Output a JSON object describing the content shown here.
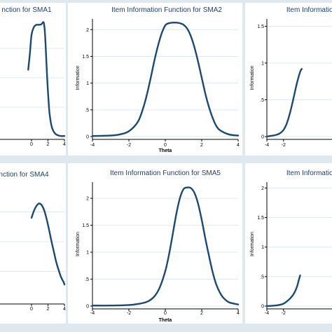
{
  "colors": {
    "line": "#1a4a72",
    "axis": "#000000",
    "grid": "#dfe8ee",
    "title": "#1f3f6e",
    "panel_bg": "#ffffff",
    "outer_bg": "#dfe8ee"
  },
  "chart_data": [
    {
      "type": "line",
      "title": "nction for SMA1",
      "xlabel": "",
      "ylabel": "",
      "xlim": [
        -4,
        4
      ],
      "ylim": [
        0,
        2.2
      ],
      "x_ticks": [
        0,
        2,
        4
      ],
      "x_tick_labels": [
        "0",
        "2",
        "4"
      ],
      "y_ticks": [],
      "y_tick_labels": [],
      "grid": true,
      "series": [
        {
          "x": [
            -0.4,
            -0.2,
            0,
            0.3,
            0.6,
            0.9,
            1.2,
            1.4,
            1.5,
            1.6,
            1.7,
            1.8,
            1.9,
            2,
            2.1,
            2.2,
            2.4,
            2.6,
            2.8,
            3,
            3.3,
            3.6,
            3.9,
            4
          ],
          "y": [
            1.25,
            1.55,
            1.9,
            2.05,
            2.09,
            2.09,
            2.1,
            2.14,
            2.12,
            2,
            1.75,
            1.42,
            1.1,
            0.83,
            0.6,
            0.42,
            0.22,
            0.12,
            0.07,
            0.04,
            0.02,
            0.01,
            0.01,
            0.01
          ]
        }
      ]
    },
    {
      "type": "line",
      "title": "Item Information Function for SMA2",
      "xlabel": "Theta",
      "ylabel": "Information",
      "xlim": [
        -4,
        4
      ],
      "ylim": [
        0,
        2.2
      ],
      "x_ticks": [
        -4,
        -2,
        0,
        2,
        4
      ],
      "x_tick_labels": [
        "-4",
        "-2",
        "0",
        "2",
        "4"
      ],
      "y_ticks": [
        0,
        0.5,
        1,
        1.5,
        2
      ],
      "y_tick_labels": [
        "0",
        ".5",
        "1",
        "1.5",
        "2"
      ],
      "grid": true,
      "series": [
        {
          "x": [
            -4,
            -3,
            -2.5,
            -2,
            -1.5,
            -1.2,
            -1,
            -0.8,
            -0.6,
            -0.4,
            -0.2,
            0,
            0.2,
            0.4,
            0.6,
            0.8,
            1,
            1.2,
            1.4,
            1.6,
            1.8,
            2,
            2.2,
            2.4,
            2.6,
            2.8,
            3,
            3.5,
            4
          ],
          "y": [
            0.01,
            0.02,
            0.04,
            0.1,
            0.28,
            0.55,
            0.8,
            1.1,
            1.42,
            1.7,
            1.93,
            2.08,
            2.12,
            2.13,
            2.13,
            2.12,
            2.09,
            2.02,
            1.88,
            1.67,
            1.4,
            1.1,
            0.8,
            0.55,
            0.35,
            0.2,
            0.12,
            0.04,
            0.02
          ]
        }
      ]
    },
    {
      "type": "line",
      "title": "Item Information",
      "xlabel": "",
      "ylabel": "Information",
      "xlim": [
        -4,
        4
      ],
      "ylim": [
        0,
        1.6
      ],
      "x_ticks": [
        -4,
        -2
      ],
      "x_tick_labels": [
        "-4",
        "-2"
      ],
      "y_ticks": [
        0,
        0.5,
        1,
        1.5
      ],
      "y_tick_labels": [
        "0",
        ".5",
        "1",
        "1.5"
      ],
      "grid": true,
      "series": [
        {
          "x": [
            -4,
            -3.5,
            -3,
            -2.5,
            -2,
            -1.6,
            -1.2,
            -0.8,
            -0.4,
            0,
            0.2
          ],
          "y": [
            0,
            0.01,
            0.02,
            0.04,
            0.09,
            0.18,
            0.33,
            0.52,
            0.72,
            0.88,
            0.92
          ]
        }
      ]
    },
    {
      "type": "line",
      "title": "nction for SMA4",
      "xlabel": "",
      "ylabel": "",
      "xlim": [
        -4,
        4
      ],
      "ylim": [
        0,
        1
      ],
      "x_ticks": [
        0,
        2,
        4
      ],
      "x_tick_labels": [
        "0",
        "2",
        "4"
      ],
      "y_ticks": [],
      "y_tick_labels": [],
      "grid": true,
      "series": [
        {
          "x": [
            0,
            0.3,
            0.6,
            0.9,
            1.2,
            1.5,
            1.8,
            2.1,
            2.4,
            2.7,
            3,
            3.3,
            3.6,
            3.9,
            4
          ],
          "y": [
            0.7,
            0.76,
            0.8,
            0.82,
            0.81,
            0.77,
            0.7,
            0.61,
            0.51,
            0.42,
            0.33,
            0.26,
            0.2,
            0.16,
            0.14
          ]
        }
      ]
    },
    {
      "type": "line",
      "title": "Item Information Function for SMA5",
      "xlabel": "Theta",
      "ylabel": "Information",
      "xlim": [
        -4,
        4
      ],
      "ylim": [
        0,
        2.3
      ],
      "x_ticks": [
        -4,
        -2,
        0,
        2,
        4
      ],
      "x_tick_labels": [
        "-4",
        "-2",
        "0",
        "2",
        "4"
      ],
      "y_ticks": [
        0,
        0.5,
        1,
        1.5,
        2
      ],
      "y_tick_labels": [
        "0",
        ".5",
        "1",
        "1.5",
        "2"
      ],
      "grid": true,
      "series": [
        {
          "x": [
            -4,
            -3,
            -2,
            -1.5,
            -1,
            -0.6,
            -0.3,
            0,
            0.2,
            0.4,
            0.6,
            0.8,
            1,
            1.2,
            1.4,
            1.6,
            1.8,
            2,
            2.2,
            2.4,
            2.6,
            2.8,
            3,
            3.2,
            3.5,
            4
          ],
          "y": [
            0.01,
            0.01,
            0.02,
            0.04,
            0.08,
            0.18,
            0.35,
            0.65,
            0.95,
            1.32,
            1.7,
            2,
            2.17,
            2.2,
            2.19,
            2.1,
            1.9,
            1.6,
            1.25,
            0.93,
            0.63,
            0.4,
            0.25,
            0.15,
            0.07,
            0.03
          ]
        }
      ]
    },
    {
      "type": "line",
      "title": "Item Information",
      "xlabel": "",
      "ylabel": "Information",
      "xlim": [
        -4,
        4
      ],
      "ylim": [
        0,
        2.1
      ],
      "x_ticks": [
        -4,
        -2
      ],
      "x_tick_labels": [
        "-4",
        "-2"
      ],
      "y_ticks": [
        0,
        0.5,
        1,
        1.5,
        2
      ],
      "y_tick_labels": [
        "0",
        ".5",
        "1",
        "1.5",
        "2"
      ],
      "grid": true,
      "series": [
        {
          "x": [
            -4,
            -3,
            -2.5,
            -2,
            -1.6,
            -1.2,
            -0.8,
            -0.4,
            -0.2,
            0
          ],
          "y": [
            0,
            0.01,
            0.02,
            0.04,
            0.08,
            0.13,
            0.2,
            0.32,
            0.42,
            0.52
          ]
        }
      ]
    }
  ]
}
